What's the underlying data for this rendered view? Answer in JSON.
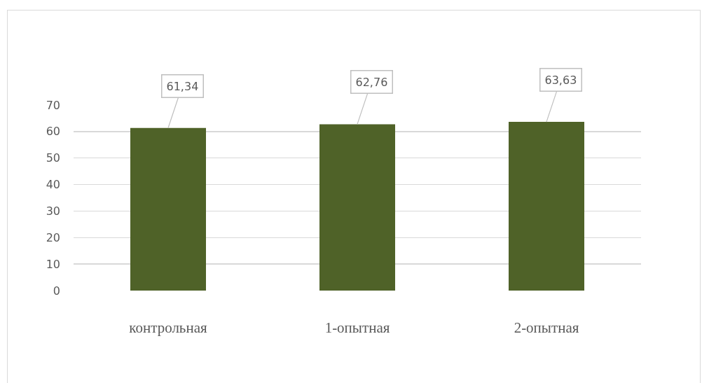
{
  "chart_data": {
    "type": "bar",
    "categories": [
      "контрольная",
      "1-опытная",
      "2-опытная"
    ],
    "values": [
      61.34,
      62.76,
      63.63
    ],
    "value_labels": [
      "61,34",
      "62,76",
      "63,63"
    ],
    "color": "#4f6228",
    "ylim": [
      0,
      70
    ],
    "yticks": [
      0,
      10,
      20,
      30,
      40,
      50,
      60,
      70
    ],
    "grid": "y"
  }
}
